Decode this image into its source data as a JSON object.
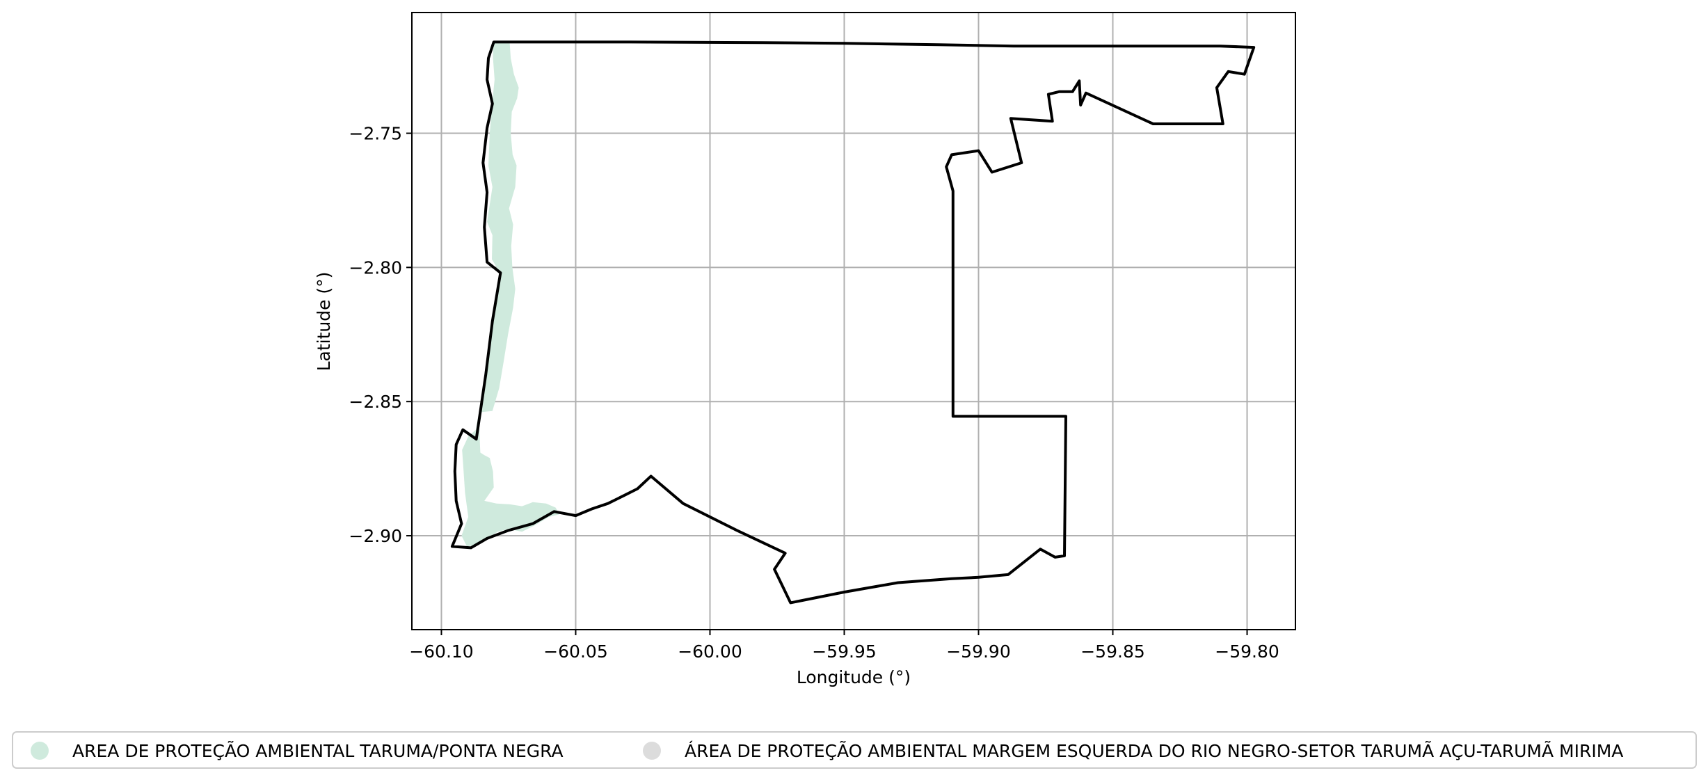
{
  "chart_data": {
    "type": "map",
    "xlabel": "Longitude (°)",
    "ylabel": "Latitude (°)",
    "xlim": [
      -60.111,
      -59.782
    ],
    "ylim": [
      -2.935,
      -2.705
    ],
    "x_ticks": [
      -60.1,
      -60.05,
      -60.0,
      -59.95,
      -59.9,
      -59.85,
      -59.8
    ],
    "x_tick_labels": [
      "−60.10",
      "−60.05",
      "−60.00",
      "−59.95",
      "−59.90",
      "−59.85",
      "−59.80"
    ],
    "y_ticks": [
      -2.75,
      -2.8,
      -2.85,
      -2.9
    ],
    "y_tick_labels": [
      "−2.75",
      "−2.80",
      "−2.85",
      "−2.90"
    ],
    "grid": true,
    "legend_position": "bottom-center",
    "legend": [
      {
        "label": "AREA DE PROTEÇÃO AMBIENTAL TARUMA/PONTA NEGRA",
        "color": "#cfeadd"
      },
      {
        "label": "ÁREA DE PROTEÇÃO AMBIENTAL MARGEM ESQUERDA DO RIO NEGRO-SETOR TARUMÃ AÇU-TARUMÃ MIRIMA",
        "color": "#dcdcdc"
      }
    ],
    "features": [
      {
        "name": "AREA DE PROTEÇÃO AMBIENTAL TARUMA/PONTA NEGRA",
        "style": "fill",
        "color": "#cfeadd",
        "coordinates": [
          [
            -60.0768,
            -2.716
          ],
          [
            -60.0746,
            -2.716
          ],
          [
            -60.0742,
            -2.722
          ],
          [
            -60.073,
            -2.728
          ],
          [
            -60.0712,
            -2.733
          ],
          [
            -60.0718,
            -2.737
          ],
          [
            -60.0738,
            -2.742
          ],
          [
            -60.0742,
            -2.75
          ],
          [
            -60.0735,
            -2.758
          ],
          [
            -60.072,
            -2.762
          ],
          [
            -60.0725,
            -2.77
          ],
          [
            -60.0748,
            -2.778
          ],
          [
            -60.0733,
            -2.784
          ],
          [
            -60.074,
            -2.792
          ],
          [
            -60.0736,
            -2.8
          ],
          [
            -60.0725,
            -2.808
          ],
          [
            -60.0733,
            -2.815
          ],
          [
            -60.0752,
            -2.825
          ],
          [
            -60.0768,
            -2.835
          ],
          [
            -60.0785,
            -2.845
          ],
          [
            -60.081,
            -2.8535
          ],
          [
            -60.086,
            -2.854
          ],
          [
            -60.0857,
            -2.865
          ],
          [
            -60.0855,
            -2.869
          ],
          [
            -60.084,
            -2.87
          ],
          [
            -60.082,
            -2.871
          ],
          [
            -60.0808,
            -2.876
          ],
          [
            -60.0805,
            -2.882
          ],
          [
            -60.084,
            -2.887
          ],
          [
            -60.0795,
            -2.888
          ],
          [
            -60.0745,
            -2.8883
          ],
          [
            -60.07,
            -2.889
          ],
          [
            -60.066,
            -2.8875
          ],
          [
            -60.061,
            -2.888
          ],
          [
            -60.0575,
            -2.8895
          ],
          [
            -60.056,
            -2.892
          ],
          [
            -60.06,
            -2.893
          ],
          [
            -60.065,
            -2.896
          ],
          [
            -60.07,
            -2.8985
          ],
          [
            -60.075,
            -2.8975
          ],
          [
            -60.079,
            -2.8985
          ],
          [
            -60.083,
            -2.901
          ],
          [
            -60.087,
            -2.9035
          ],
          [
            -60.0905,
            -2.904
          ],
          [
            -60.0925,
            -2.9
          ],
          [
            -60.09,
            -2.893
          ],
          [
            -60.0912,
            -2.884
          ],
          [
            -60.0918,
            -2.875
          ],
          [
            -60.0923,
            -2.868
          ],
          [
            -60.09,
            -2.863
          ],
          [
            -60.0872,
            -2.8605
          ],
          [
            -60.0832,
            -2.838
          ],
          [
            -60.08,
            -2.813
          ],
          [
            -60.0782,
            -2.802
          ],
          [
            -60.0812,
            -2.797
          ],
          [
            -60.081,
            -2.788
          ],
          [
            -60.083,
            -2.783
          ],
          [
            -60.081,
            -2.77
          ],
          [
            -60.0825,
            -2.762
          ],
          [
            -60.082,
            -2.75
          ],
          [
            -60.081,
            -2.738
          ],
          [
            -60.0802,
            -2.73
          ],
          [
            -60.0808,
            -2.722
          ],
          [
            -60.0808,
            -2.716
          ]
        ]
      },
      {
        "name": "ÁREA DE PROTEÇÃO AMBIENTAL MARGEM ESQUERDA DO RIO NEGRO-SETOR TARUMÃ AÇU-TARUMÃ MIRIMA",
        "style": "outline",
        "color": "#000000",
        "coordinates": [
          [
            -60.0805,
            -2.716
          ],
          [
            -60.03,
            -2.716
          ],
          [
            -59.98,
            -2.7162
          ],
          [
            -59.95,
            -2.7165
          ],
          [
            -59.915,
            -2.717
          ],
          [
            -59.887,
            -2.7175
          ],
          [
            -59.865,
            -2.7175
          ],
          [
            -59.835,
            -2.7175
          ],
          [
            -59.81,
            -2.7175
          ],
          [
            -59.7975,
            -2.718
          ],
          [
            -59.801,
            -2.728
          ],
          [
            -59.807,
            -2.727
          ],
          [
            -59.8113,
            -2.733
          ],
          [
            -59.809,
            -2.7465
          ],
          [
            -59.835,
            -2.7465
          ],
          [
            -59.86,
            -2.735
          ],
          [
            -59.862,
            -2.7395
          ],
          [
            -59.8625,
            -2.7305
          ],
          [
            -59.865,
            -2.7345
          ],
          [
            -59.87,
            -2.7345
          ],
          [
            -59.874,
            -2.7355
          ],
          [
            -59.8725,
            -2.7455
          ],
          [
            -59.888,
            -2.7445
          ],
          [
            -59.884,
            -2.761
          ],
          [
            -59.895,
            -2.7645
          ],
          [
            -59.9,
            -2.7565
          ],
          [
            -59.91,
            -2.758
          ],
          [
            -59.912,
            -2.7625
          ],
          [
            -59.9095,
            -2.7715
          ],
          [
            -59.9095,
            -2.804
          ],
          [
            -59.9095,
            -2.8555
          ],
          [
            -59.8675,
            -2.8555
          ],
          [
            -59.868,
            -2.9075
          ],
          [
            -59.8715,
            -2.908
          ],
          [
            -59.877,
            -2.905
          ],
          [
            -59.889,
            -2.9145
          ],
          [
            -59.9,
            -2.9155
          ],
          [
            -59.91,
            -2.916
          ],
          [
            -59.93,
            -2.9175
          ],
          [
            -59.95,
            -2.921
          ],
          [
            -59.97,
            -2.925
          ],
          [
            -59.976,
            -2.9125
          ],
          [
            -59.972,
            -2.9065
          ],
          [
            -59.99,
            -2.898
          ],
          [
            -60.01,
            -2.888
          ],
          [
            -60.022,
            -2.8778
          ],
          [
            -60.027,
            -2.8825
          ],
          [
            -60.032,
            -2.885
          ],
          [
            -60.038,
            -2.888
          ],
          [
            -60.044,
            -2.89
          ],
          [
            -60.05,
            -2.8925
          ],
          [
            -60.058,
            -2.891
          ],
          [
            -60.066,
            -2.8955
          ],
          [
            -60.075,
            -2.898
          ],
          [
            -60.083,
            -2.901
          ],
          [
            -60.089,
            -2.9045
          ],
          [
            -60.096,
            -2.904
          ],
          [
            -60.0925,
            -2.8955
          ],
          [
            -60.0945,
            -2.887
          ],
          [
            -60.095,
            -2.876
          ],
          [
            -60.0945,
            -2.866
          ],
          [
            -60.092,
            -2.8605
          ],
          [
            -60.087,
            -2.864
          ],
          [
            -60.0835,
            -2.84
          ],
          [
            -60.081,
            -2.82
          ],
          [
            -60.078,
            -2.802
          ],
          [
            -60.083,
            -2.798
          ],
          [
            -60.084,
            -2.785
          ],
          [
            -60.083,
            -2.772
          ],
          [
            -60.0845,
            -2.761
          ],
          [
            -60.083,
            -2.748
          ],
          [
            -60.081,
            -2.739
          ],
          [
            -60.083,
            -2.73
          ],
          [
            -60.0825,
            -2.722
          ],
          [
            -60.0805,
            -2.716
          ]
        ]
      }
    ]
  }
}
